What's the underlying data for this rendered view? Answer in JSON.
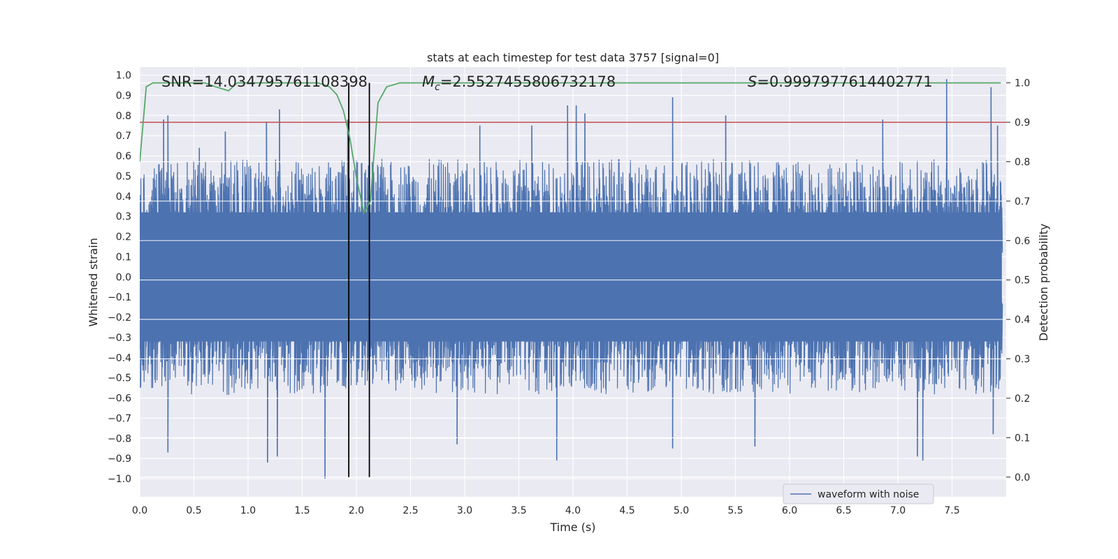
{
  "chart_data": {
    "type": "line",
    "title": "stats at each timestep for test data 3757 [signal=0]",
    "xlabel": "Time (s)",
    "ylabel": "Whitened strain",
    "y2label": "Detection probability",
    "xlim": [
      0.0,
      8.0
    ],
    "ylim": [
      -1.09,
      1.04
    ],
    "y2lim": [
      -0.05,
      1.04
    ],
    "xticks": [
      0.0,
      0.5,
      1.0,
      1.5,
      2.0,
      2.5,
      3.0,
      3.5,
      4.0,
      4.5,
      5.0,
      5.5,
      6.0,
      6.5,
      7.0,
      7.5
    ],
    "xtick_labels": [
      "0.0",
      "0.5",
      "1.0",
      "1.5",
      "2.0",
      "2.5",
      "3.0",
      "3.5",
      "4.0",
      "4.5",
      "5.0",
      "5.5",
      "6.0",
      "6.5",
      "7.0",
      "7.5"
    ],
    "yticks": [
      1.0,
      0.9,
      0.8,
      0.7,
      0.6,
      0.5,
      0.4,
      0.3,
      0.2,
      0.1,
      0.0,
      -0.1,
      -0.2,
      -0.3,
      -0.4,
      -0.5,
      -0.6,
      -0.7,
      -0.8,
      -0.9,
      -1.0
    ],
    "ytick_labels": [
      "1.0",
      "0.9",
      "0.8",
      "0.7",
      "0.6",
      "0.5",
      "0.4",
      "0.3",
      "0.2",
      "0.1",
      "0.0",
      "−0.1",
      "−0.2",
      "−0.3",
      "−0.4",
      "−0.5",
      "−0.6",
      "−0.7",
      "−0.8",
      "−0.9",
      "−1.0"
    ],
    "y2ticks": [
      1.0,
      0.9,
      0.8,
      0.7,
      0.6,
      0.5,
      0.4,
      0.3,
      0.2,
      0.1,
      0.0
    ],
    "y2tick_labels": [
      "1.0",
      "0.9",
      "0.8",
      "0.7",
      "0.6",
      "0.5",
      "0.4",
      "0.3",
      "0.2",
      "0.1",
      "0.0"
    ],
    "grid": true,
    "legend": {
      "entries": [
        "waveform with noise"
      ],
      "placement": "lower-right"
    },
    "annotations": {
      "snr": "SNR=14.034795761108398",
      "mc_symbol": "M",
      "mc_sub": "c",
      "mc_value": "=2.5527455806732178",
      "s_symbol": "S",
      "s_value": "=0.9997977614402771"
    },
    "series": [
      {
        "name": "waveform with noise",
        "kind": "noise-strain",
        "color": "#4c72b0",
        "envelope_upper_typical": 0.45,
        "envelope_lower_typical": -0.45,
        "peaks": [
          {
            "x": 0.22,
            "y": 0.78
          },
          {
            "x": 0.26,
            "y": 0.8
          },
          {
            "x": 0.55,
            "y": 0.64
          },
          {
            "x": 0.79,
            "y": 0.72
          },
          {
            "x": 1.17,
            "y": 0.77
          },
          {
            "x": 1.29,
            "y": 0.83
          },
          {
            "x": 1.92,
            "y": 0.78
          },
          {
            "x": 3.14,
            "y": 0.75
          },
          {
            "x": 3.62,
            "y": 0.75
          },
          {
            "x": 3.95,
            "y": 0.85
          },
          {
            "x": 4.03,
            "y": 0.85
          },
          {
            "x": 4.11,
            "y": 0.81
          },
          {
            "x": 4.92,
            "y": 0.89
          },
          {
            "x": 5.41,
            "y": 0.8
          },
          {
            "x": 6.86,
            "y": 0.78
          },
          {
            "x": 7.45,
            "y": 0.98
          },
          {
            "x": 7.86,
            "y": 0.94
          },
          {
            "x": 7.92,
            "y": 0.75
          }
        ],
        "troughs": [
          {
            "x": 0.26,
            "y": -0.87
          },
          {
            "x": 1.18,
            "y": -0.92
          },
          {
            "x": 1.27,
            "y": -0.89
          },
          {
            "x": 1.71,
            "y": -1.0
          },
          {
            "x": 2.93,
            "y": -0.83
          },
          {
            "x": 3.85,
            "y": -0.91
          },
          {
            "x": 4.92,
            "y": -0.85
          },
          {
            "x": 5.68,
            "y": -0.84
          },
          {
            "x": 7.18,
            "y": -0.89
          },
          {
            "x": 7.23,
            "y": -0.91
          },
          {
            "x": 7.88,
            "y": -0.78
          }
        ]
      },
      {
        "name": "",
        "kind": "probability",
        "axis": "y2",
        "color": "#55a868",
        "points": [
          [
            0.0,
            0.8
          ],
          [
            0.06,
            0.99
          ],
          [
            0.12,
            1.0
          ],
          [
            0.6,
            1.0
          ],
          [
            0.7,
            0.99
          ],
          [
            0.82,
            0.98
          ],
          [
            0.9,
            1.0
          ],
          [
            1.5,
            1.0
          ],
          [
            1.65,
            1.0
          ],
          [
            1.75,
            0.99
          ],
          [
            1.82,
            0.97
          ],
          [
            1.88,
            0.93
          ],
          [
            1.94,
            0.86
          ],
          [
            2.0,
            0.76
          ],
          [
            2.07,
            0.67
          ],
          [
            2.13,
            0.7
          ],
          [
            2.2,
            0.95
          ],
          [
            2.28,
            0.99
          ],
          [
            2.4,
            1.0
          ],
          [
            7.95,
            1.0
          ]
        ]
      },
      {
        "name": "",
        "kind": "threshold",
        "axis": "y2",
        "color": "#c44e52",
        "y": 0.9
      }
    ],
    "vlines": [
      {
        "x": 1.93,
        "color": "#000000"
      },
      {
        "x": 2.12,
        "color": "#000000"
      }
    ],
    "colors": {
      "background": "#eaeaf2",
      "grid": "#ffffff",
      "strain": "#4c72b0",
      "probability": "#55a868",
      "threshold": "#c44e52",
      "vline": "#000000"
    }
  }
}
